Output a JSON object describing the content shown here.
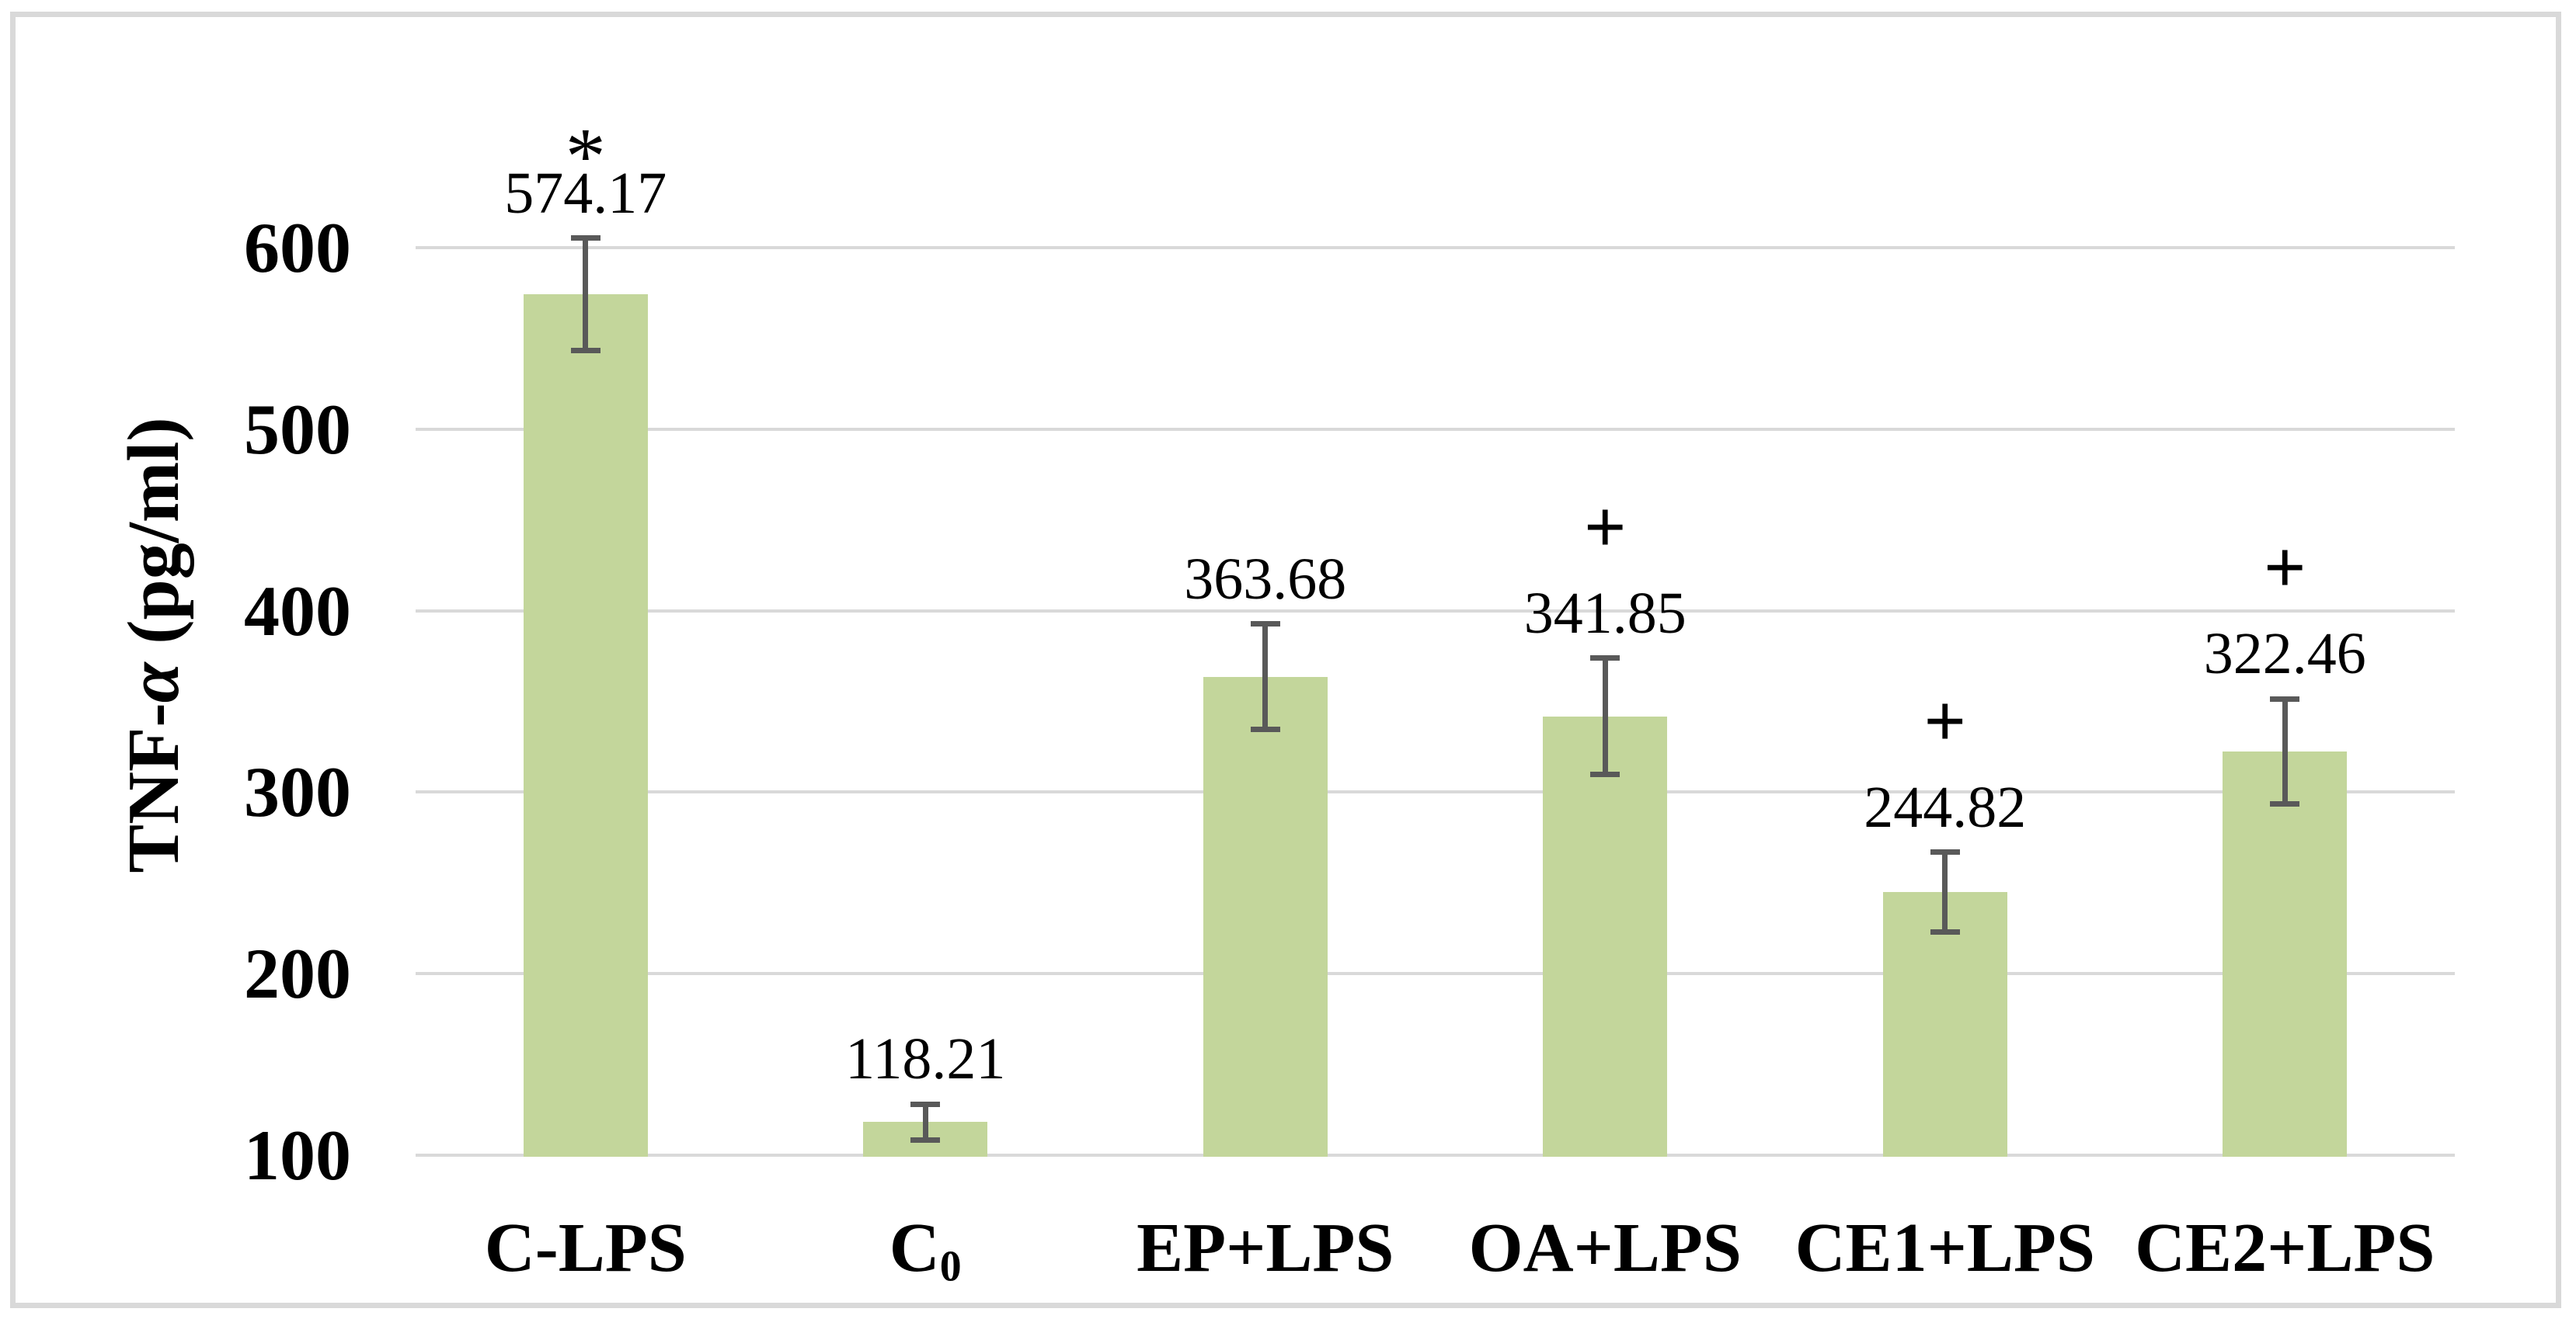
{
  "chart_data": {
    "type": "bar",
    "title": "",
    "ylabel": {
      "prefix": "TNF-",
      "alpha": "α",
      "suffix": " (pg/ml)"
    },
    "ylabel_text": "TNF-α (pg/ml)",
    "categories": [
      {
        "text": "C-LPS"
      },
      {
        "text": "C",
        "sub": "0"
      },
      {
        "text": "EP+LPS"
      },
      {
        "text": "OA+LPS"
      },
      {
        "text": "CE1+LPS"
      },
      {
        "text": "CE2+LPS"
      }
    ],
    "values": [
      574.17,
      118.21,
      363.68,
      341.85,
      244.82,
      322.46
    ],
    "value_labels": [
      "574.17",
      "118.21",
      "363.68",
      "341.85",
      "244.82",
      "322.46"
    ],
    "significance_markers": [
      "*",
      "",
      "",
      "+",
      "+",
      "+"
    ],
    "error_bars": [
      31,
      10,
      29,
      32,
      22,
      29
    ],
    "yticks": [
      100,
      200,
      300,
      400,
      500,
      600
    ],
    "ytick_labels": [
      "100",
      "200",
      "300",
      "400",
      "500",
      "600"
    ],
    "ylim": [
      100,
      660
    ],
    "grid": true,
    "legend": false,
    "colors": {
      "bar_fill": "#c3d69b",
      "error_bar": "#595959",
      "gridline": "#d9d9d9",
      "frame_border": "#d9d9d9",
      "text": "#000000"
    }
  }
}
